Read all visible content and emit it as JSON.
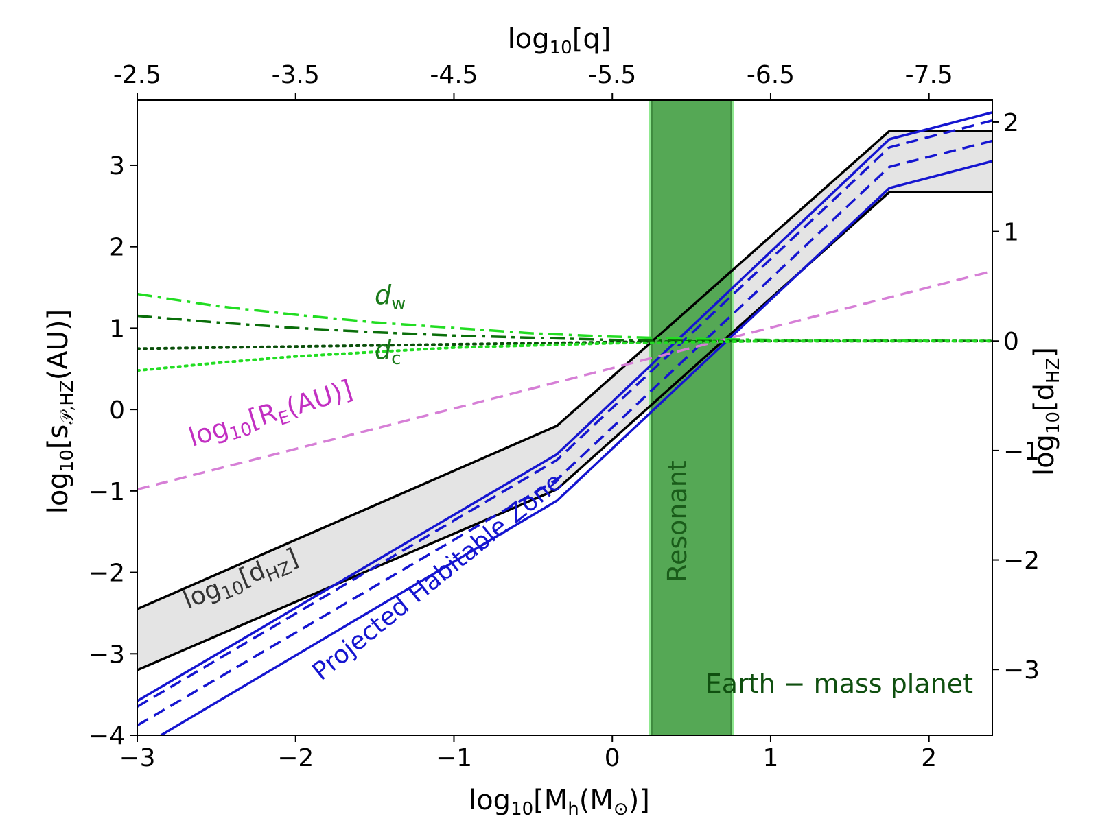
{
  "chart_data": {
    "type": "line",
    "x_axis": {
      "label_prefix": "log",
      "label_sub": "10",
      "label_body": "[M",
      "label_body_sub": "h",
      "label_tail": "(M",
      "label_tail_sub": "⊙",
      "label_end": ")]",
      "range": [
        -3,
        2.4
      ],
      "ticks": [
        -3,
        -2,
        -1,
        0,
        1,
        2
      ],
      "tick_labels": [
        "−3",
        "−2",
        "−1",
        "0",
        "1",
        "2"
      ]
    },
    "top_axis": {
      "label_prefix": "log",
      "label_sub": "10",
      "label_body": "[q]",
      "tick_labels": [
        "-2.5",
        "-3.5",
        "-4.5",
        "-5.5",
        "-6.5",
        "-7.5"
      ],
      "tick_positions_bottom_units": [
        -3,
        -2,
        -1,
        0,
        1,
        2
      ]
    },
    "y_axis": {
      "label_prefix": "log",
      "label_sub": "10",
      "label_body": "[s",
      "label_body_sub": "𝒫,HZ",
      "label_end": "(AU)]",
      "range": [
        -4,
        3.8
      ],
      "ticks": [
        -4,
        -3,
        -2,
        -1,
        0,
        1,
        2,
        3
      ],
      "tick_labels": [
        "−4",
        "−3",
        "−2",
        "−1",
        "0",
        "1",
        "2",
        "3"
      ]
    },
    "y2_axis": {
      "label_prefix": "log",
      "label_sub": "10",
      "label_body": "[d",
      "label_body_sub": "HZ",
      "label_end": "]",
      "range": [
        -3.6,
        2.2
      ],
      "ticks": [
        -3,
        -2,
        -1,
        0,
        1,
        2
      ],
      "tick_labels": [
        "−3",
        "−2",
        "−1",
        "0",
        "1",
        "2"
      ]
    },
    "resonant_band": {
      "x": [
        0.25,
        0.75
      ],
      "label": "Resonant"
    },
    "dhz_band": {
      "upper": {
        "x": [
          -3,
          -0.35,
          1.75,
          2.4
        ],
        "y": [
          -2.45,
          -0.2,
          3.42,
          3.42
        ]
      },
      "lower": {
        "x": [
          -3,
          -0.35,
          1.75,
          2.4
        ],
        "y": [
          -3.2,
          -0.98,
          2.67,
          2.67
        ]
      }
    },
    "series": [
      {
        "name": "d_HZ upper",
        "color": "#000000",
        "style": "solid",
        "axis": "y",
        "x": [
          -3,
          -0.35,
          1.75,
          2.4
        ],
        "y": [
          -2.45,
          -0.2,
          3.42,
          3.42
        ]
      },
      {
        "name": "d_HZ lower",
        "color": "#000000",
        "style": "solid",
        "axis": "y",
        "x": [
          -3,
          -0.35,
          1.75,
          2.4
        ],
        "y": [
          -3.2,
          -0.98,
          2.67,
          2.67
        ]
      },
      {
        "name": "HZ outer solid",
        "color": "#1515d0",
        "style": "solid",
        "axis": "y",
        "x": [
          -3,
          -0.35,
          1.75,
          2.4
        ],
        "y": [
          -3.58,
          -0.55,
          3.32,
          3.65
        ]
      },
      {
        "name": "HZ inner solid",
        "color": "#1515d0",
        "style": "solid",
        "axis": "y",
        "x": [
          -2.85,
          -0.35,
          1.75,
          2.4
        ],
        "y": [
          -4.0,
          -1.12,
          2.72,
          3.05
        ]
      },
      {
        "name": "HZ dashed 1",
        "color": "#1515d0",
        "style": "dashed",
        "axis": "y",
        "x": [
          -3,
          -0.35,
          1.75,
          2.4
        ],
        "y": [
          -3.65,
          -0.62,
          3.22,
          3.55
        ]
      },
      {
        "name": "HZ dashed 2",
        "color": "#1515d0",
        "style": "dashed",
        "axis": "y",
        "x": [
          -3,
          -0.35,
          1.75,
          2.4
        ],
        "y": [
          -3.88,
          -0.86,
          2.98,
          3.3
        ]
      },
      {
        "name": "log10[R_E(AU)]",
        "color": "#d67fd6",
        "style": "dashed",
        "axis": "y",
        "x": [
          -3,
          2.4
        ],
        "y": [
          -0.98,
          1.7
        ]
      },
      {
        "name": "d_w bright",
        "color": "#22dd22",
        "style": "dashdot",
        "axis": "y2",
        "x": [
          -3,
          -2.5,
          -2,
          -1.5,
          -1,
          -0.5,
          0,
          0.5,
          1,
          2.4
        ],
        "y": [
          0.43,
          0.32,
          0.24,
          0.17,
          0.12,
          0.07,
          0.04,
          0.02,
          0.01,
          0.0
        ]
      },
      {
        "name": "d_w dark",
        "color": "#0a6e0a",
        "style": "dashdot",
        "axis": "y2",
        "x": [
          -3,
          -2.5,
          -2,
          -1.5,
          -1,
          -0.5,
          0,
          0.5,
          1,
          2.4
        ],
        "y": [
          0.23,
          0.17,
          0.12,
          0.08,
          0.05,
          0.03,
          0.01,
          0.0,
          0.0,
          0.0
        ]
      },
      {
        "name": "d_c dark",
        "color": "#0a4f0a",
        "style": "dotted",
        "axis": "y2",
        "x": [
          -3,
          -2,
          -1,
          0,
          1,
          2.4
        ],
        "y": [
          -0.07,
          -0.05,
          -0.03,
          -0.01,
          0.0,
          0.0
        ]
      },
      {
        "name": "d_c bright",
        "color": "#22dd22",
        "style": "dotted",
        "axis": "y2",
        "x": [
          -3,
          -2.5,
          -2,
          -1.5,
          -1,
          -0.5,
          0,
          0.5,
          1,
          2.4
        ],
        "y": [
          -0.27,
          -0.2,
          -0.14,
          -0.1,
          -0.06,
          -0.04,
          -0.02,
          -0.01,
          0.0,
          0.0
        ]
      }
    ],
    "annotations": {
      "dw": {
        "main": "d",
        "sub": "w"
      },
      "dc": {
        "main": "d",
        "sub": "c"
      },
      "re_prefix": "log",
      "re_sub": "10",
      "re_body": "[R",
      "re_body_sub": "E",
      "re_end": "(AU)]",
      "dhz_prefix": "log",
      "dhz_sub": "10",
      "dhz_body": "[d",
      "dhz_body_sub": "HZ",
      "dhz_end": "]",
      "hz": "Projected Habitable Zone",
      "earth": "Earth − mass planet"
    },
    "colors": {
      "resonant_fill": "#55a855",
      "resonant_edge": "#8fe88f",
      "band_fill": "#e4e4e4",
      "label_green": "#1a7a1a",
      "label_darkgreen": "#0f4f0f",
      "label_magenta": "#c22fc2",
      "label_blue": "#1515d0",
      "label_gray": "#333333"
    }
  }
}
